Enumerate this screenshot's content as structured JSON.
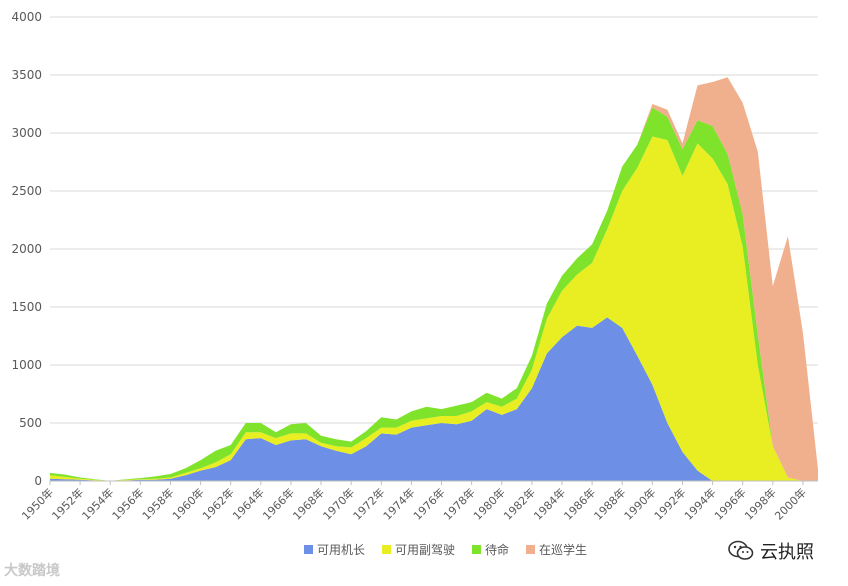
{
  "chart_data": {
    "type": "area",
    "stacked": true,
    "x": [
      1950,
      1951,
      1952,
      1953,
      1954,
      1955,
      1956,
      1957,
      1958,
      1959,
      1960,
      1961,
      1962,
      1963,
      1964,
      1965,
      1966,
      1967,
      1968,
      1969,
      1970,
      1971,
      1972,
      1973,
      1974,
      1975,
      1976,
      1977,
      1978,
      1979,
      1980,
      1981,
      1982,
      1983,
      1984,
      1985,
      1986,
      1987,
      1988,
      1989,
      1990,
      1991,
      1992,
      1993,
      1994,
      1995,
      1996,
      1997,
      1998,
      1999,
      2000,
      2001
    ],
    "x_tick_labels": [
      "1950年",
      "1952年",
      "1954年",
      "1956年",
      "1958年",
      "1960年",
      "1962年",
      "1964年",
      "1966年",
      "1968年",
      "1970年",
      "1972年",
      "1974年",
      "1976年",
      "1978年",
      "1980年",
      "1982年",
      "1984年",
      "1986年",
      "1988年",
      "1990年",
      "1992年",
      "1994年",
      "1996年",
      "1998年",
      "2000年"
    ],
    "ylim": [
      0,
      4000
    ],
    "yticks": [
      0,
      500,
      1000,
      1500,
      2000,
      2500,
      3000,
      3500,
      4000
    ],
    "grid": true,
    "legend_position": "bottom",
    "series": [
      {
        "name": "可用机长",
        "color": "#6e8fe6",
        "values": [
          20,
          15,
          10,
          5,
          0,
          5,
          10,
          10,
          20,
          50,
          90,
          120,
          180,
          360,
          370,
          310,
          350,
          360,
          300,
          260,
          230,
          300,
          410,
          400,
          460,
          480,
          500,
          490,
          520,
          620,
          570,
          620,
          800,
          1100,
          1240,
          1340,
          1320,
          1410,
          1320,
          1080,
          830,
          500,
          250,
          90,
          0,
          0,
          0,
          0,
          0,
          0,
          0,
          0
        ]
      },
      {
        "name": "可用副驾驶",
        "color": "#e8ee21",
        "values": [
          30,
          20,
          10,
          5,
          0,
          5,
          5,
          10,
          10,
          20,
          20,
          40,
          50,
          60,
          50,
          60,
          60,
          50,
          30,
          40,
          60,
          70,
          50,
          60,
          60,
          60,
          60,
          70,
          80,
          60,
          70,
          90,
          160,
          300,
          400,
          440,
          560,
          760,
          1180,
          1620,
          2140,
          2440,
          2380,
          2820,
          2780,
          2560,
          2020,
          1000,
          300,
          30,
          0,
          0
        ]
      },
      {
        "name": "待命",
        "color": "#7ee32a",
        "values": [
          20,
          20,
          10,
          5,
          0,
          5,
          10,
          20,
          30,
          40,
          70,
          100,
          80,
          80,
          80,
          50,
          80,
          90,
          60,
          60,
          50,
          60,
          90,
          70,
          80,
          100,
          60,
          90,
          80,
          80,
          70,
          90,
          120,
          130,
          130,
          140,
          160,
          160,
          210,
          200,
          250,
          200,
          230,
          200,
          280,
          260,
          280,
          260,
          0,
          0,
          0,
          0
        ]
      },
      {
        "name": "在巡学生",
        "color": "#f0b08e",
        "values": [
          0,
          0,
          0,
          0,
          0,
          0,
          0,
          0,
          0,
          0,
          0,
          0,
          0,
          0,
          0,
          0,
          0,
          0,
          0,
          0,
          0,
          0,
          0,
          0,
          0,
          0,
          0,
          0,
          0,
          0,
          0,
          0,
          0,
          0,
          0,
          0,
          0,
          0,
          0,
          0,
          30,
          60,
          50,
          300,
          380,
          660,
          960,
          1580,
          1380,
          2080,
          1280,
          100
        ]
      }
    ]
  },
  "watermarks": {
    "left_text": "大数踏境",
    "right_text": "云执照",
    "right_icon": "wechat-icon"
  }
}
